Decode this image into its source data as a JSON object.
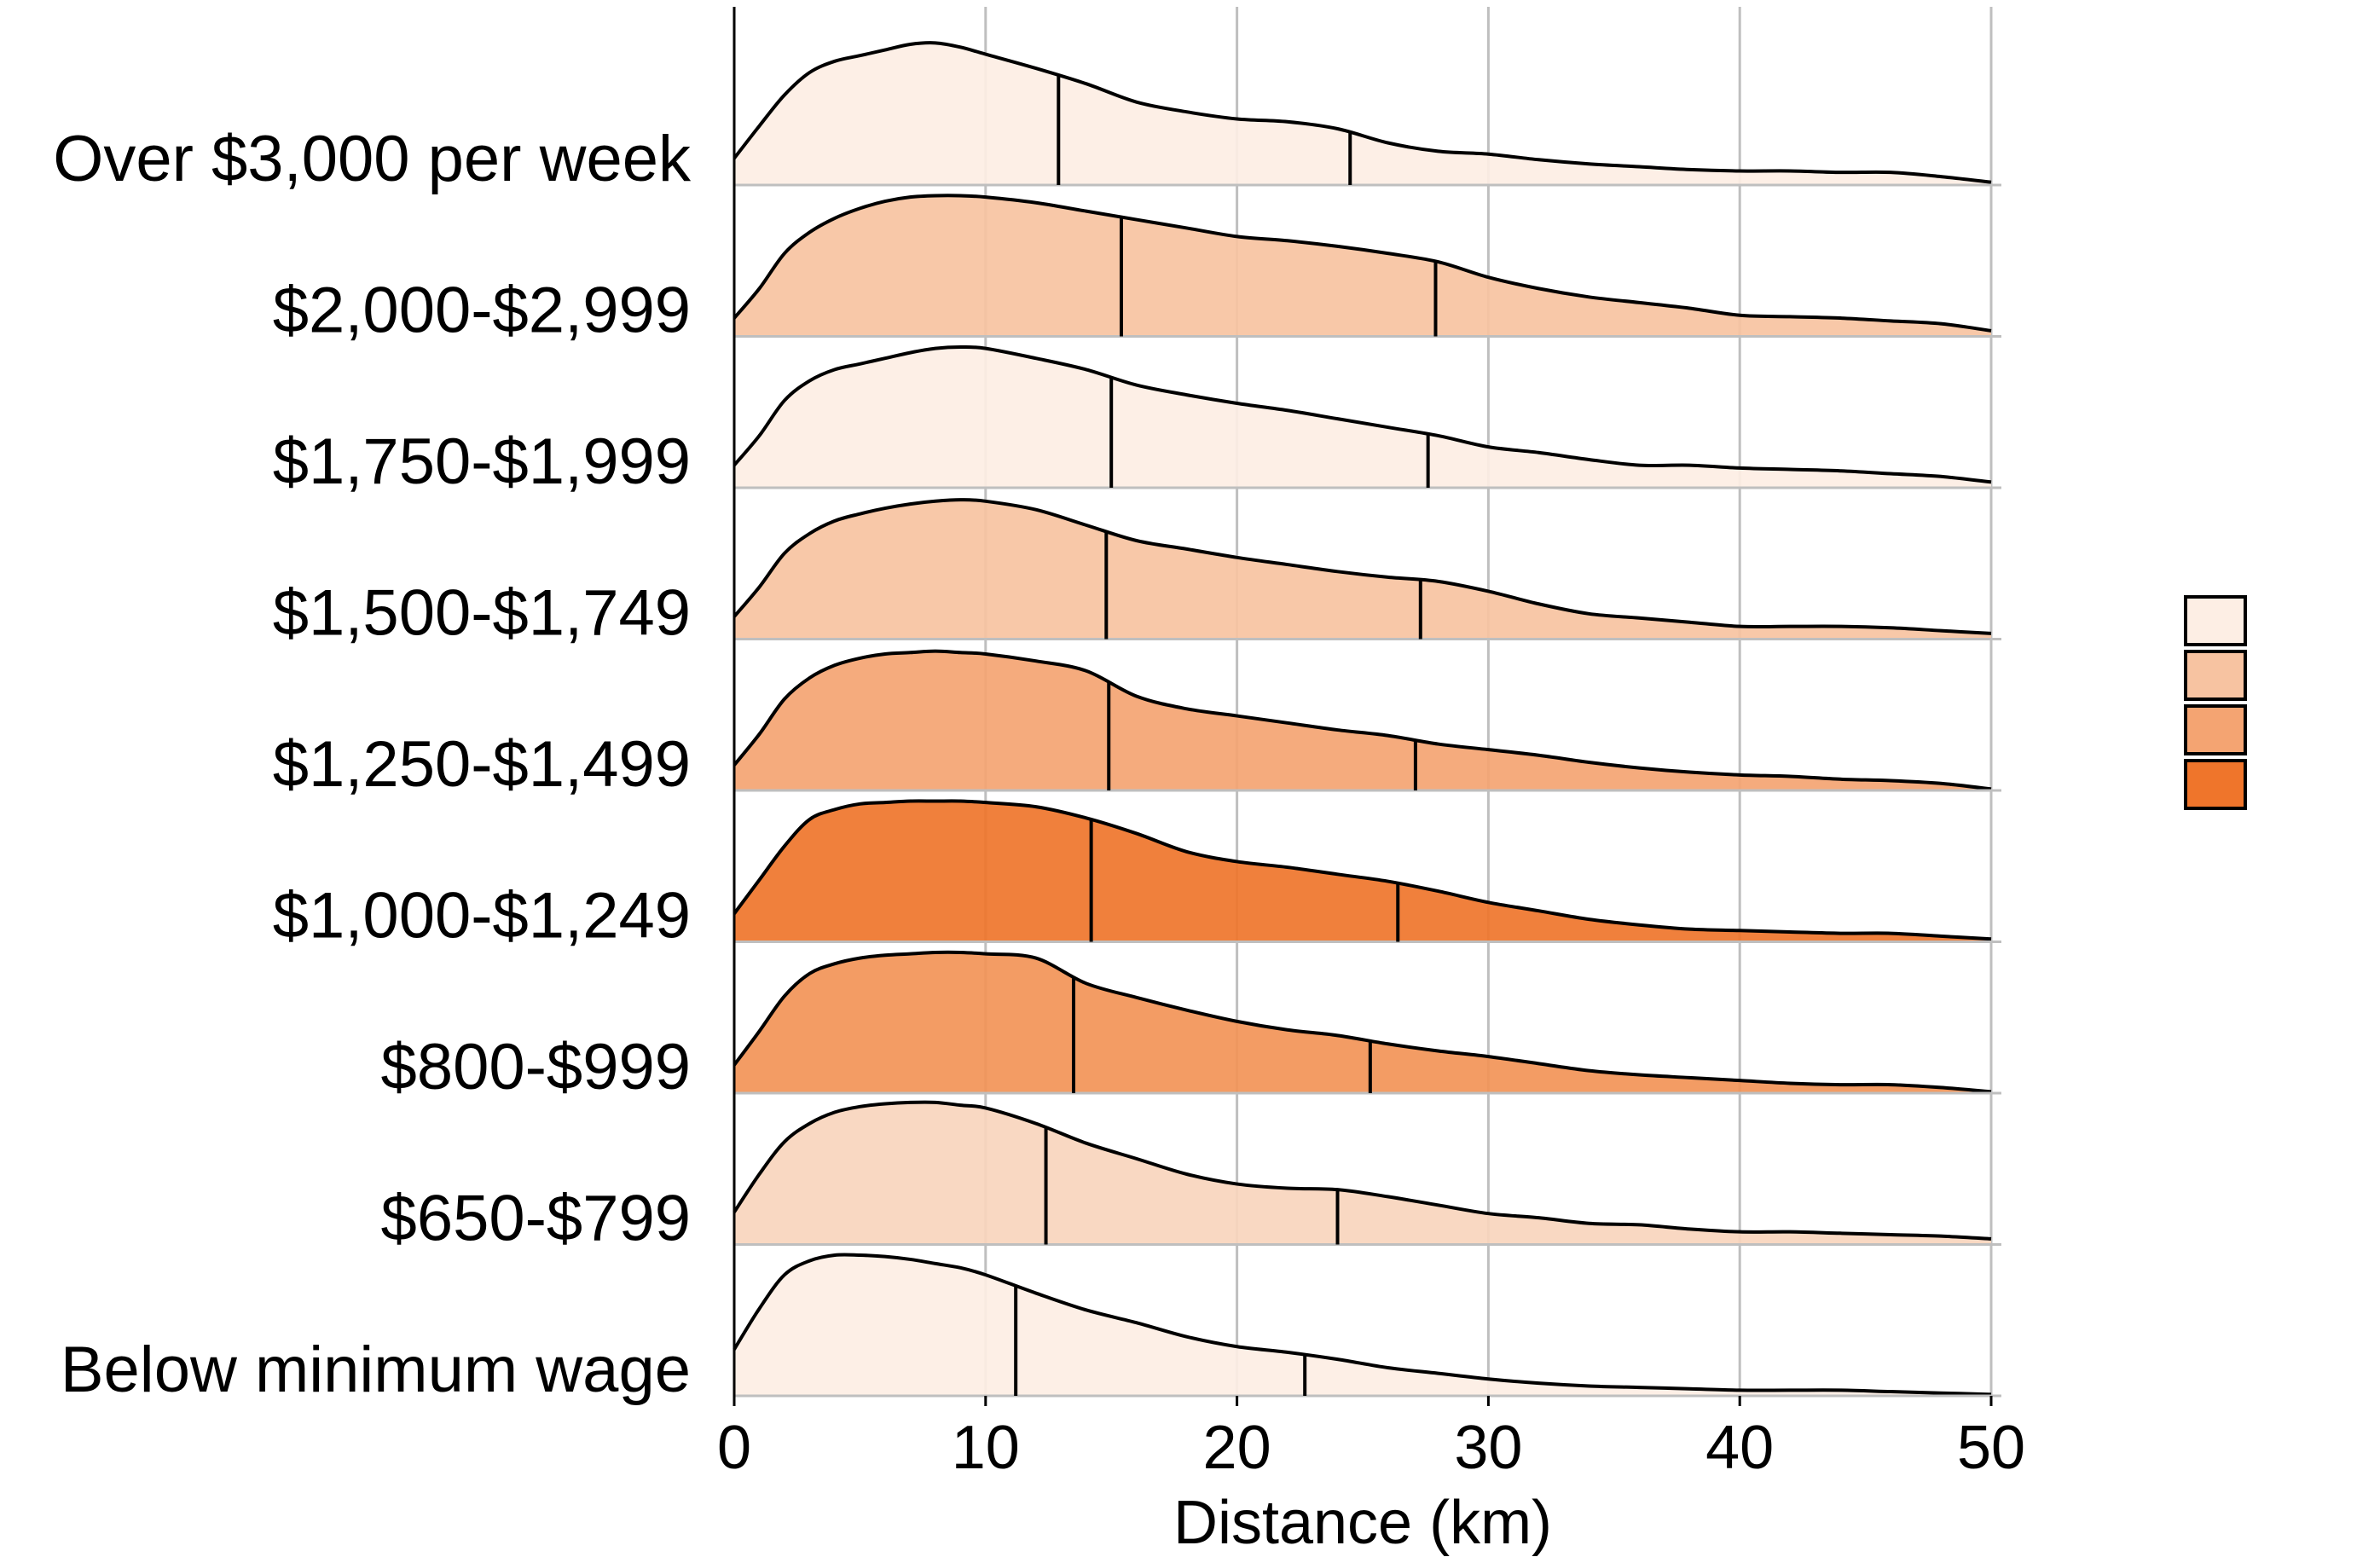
{
  "chart_data": {
    "type": "ridgeline",
    "title": "",
    "xlabel": "Distance (km)",
    "ylabel": "",
    "xlim": [
      0,
      50
    ],
    "xticks": [
      0,
      10,
      20,
      30,
      40,
      50
    ],
    "grid": "vertical",
    "legend": {
      "placement": "right",
      "colors": [
        "#fdeee4",
        "#f7c3a1",
        "#f4a472",
        "#ef752b"
      ]
    },
    "x": [
      0,
      1,
      2,
      3,
      4,
      5,
      6,
      7,
      8,
      9,
      10,
      12,
      14,
      16,
      18,
      20,
      22,
      24,
      26,
      28,
      30,
      32,
      34,
      36,
      38,
      40,
      42,
      44,
      46,
      48,
      50
    ],
    "series": [
      {
        "name": "Over $3,000 per week",
        "color": "#fdeee4",
        "quantiles": [
          12.9,
          24.5
        ],
        "density": [
          0.19,
          0.42,
          0.64,
          0.8,
          0.88,
          0.92,
          0.96,
          1.0,
          1.01,
          0.98,
          0.93,
          0.83,
          0.72,
          0.59,
          0.52,
          0.47,
          0.45,
          0.4,
          0.3,
          0.24,
          0.22,
          0.18,
          0.15,
          0.13,
          0.11,
          0.1,
          0.1,
          0.09,
          0.09,
          0.06,
          0.02
        ]
      },
      {
        "name": "$2,000-$2,999",
        "color": "#f7c3a1",
        "quantiles": [
          15.4,
          27.9
        ],
        "density": [
          0.13,
          0.34,
          0.59,
          0.74,
          0.84,
          0.91,
          0.96,
          0.99,
          1.0,
          1.0,
          0.99,
          0.95,
          0.89,
          0.83,
          0.77,
          0.71,
          0.68,
          0.64,
          0.59,
          0.53,
          0.42,
          0.34,
          0.28,
          0.24,
          0.2,
          0.15,
          0.14,
          0.13,
          0.11,
          0.09,
          0.04
        ]
      },
      {
        "name": "$1,750-$1,999",
        "color": "#fdeee4",
        "quantiles": [
          15.0,
          27.6
        ],
        "density": [
          0.16,
          0.37,
          0.62,
          0.76,
          0.84,
          0.88,
          0.92,
          0.96,
          0.99,
          1.0,
          0.99,
          0.92,
          0.84,
          0.73,
          0.66,
          0.6,
          0.55,
          0.49,
          0.43,
          0.37,
          0.29,
          0.25,
          0.2,
          0.16,
          0.16,
          0.14,
          0.13,
          0.12,
          0.1,
          0.08,
          0.04
        ]
      },
      {
        "name": "$1,500-$1,749",
        "color": "#f7c3a1",
        "quantiles": [
          14.8,
          27.3
        ],
        "density": [
          0.16,
          0.37,
          0.61,
          0.75,
          0.84,
          0.89,
          0.93,
          0.96,
          0.98,
          0.99,
          0.98,
          0.92,
          0.81,
          0.7,
          0.64,
          0.58,
          0.53,
          0.48,
          0.44,
          0.41,
          0.34,
          0.25,
          0.18,
          0.15,
          0.12,
          0.09,
          0.09,
          0.09,
          0.08,
          0.06,
          0.04
        ]
      },
      {
        "name": "$1,250-$1,499",
        "color": "#f4a472",
        "quantiles": [
          14.9,
          27.1
        ],
        "density": [
          0.18,
          0.4,
          0.65,
          0.8,
          0.89,
          0.94,
          0.97,
          0.98,
          0.99,
          0.98,
          0.97,
          0.92,
          0.85,
          0.67,
          0.58,
          0.53,
          0.48,
          0.43,
          0.39,
          0.33,
          0.29,
          0.25,
          0.2,
          0.16,
          0.13,
          0.11,
          0.1,
          0.08,
          0.07,
          0.05,
          0.01
        ]
      },
      {
        "name": "$1,000-$1,249",
        "color": "#ef752b",
        "quantiles": [
          14.2,
          26.4
        ],
        "density": [
          0.2,
          0.44,
          0.68,
          0.87,
          0.94,
          0.98,
          0.99,
          1.0,
          1.0,
          1.0,
          0.99,
          0.96,
          0.88,
          0.77,
          0.64,
          0.57,
          0.53,
          0.48,
          0.43,
          0.36,
          0.28,
          0.22,
          0.16,
          0.12,
          0.09,
          0.08,
          0.07,
          0.06,
          0.06,
          0.04,
          0.02
        ]
      },
      {
        "name": "$800-$999",
        "color": "#f29457",
        "quantiles": [
          13.5,
          25.3
        ],
        "density": [
          0.2,
          0.44,
          0.69,
          0.85,
          0.92,
          0.96,
          0.98,
          0.99,
          1.0,
          1.0,
          0.99,
          0.96,
          0.78,
          0.68,
          0.59,
          0.51,
          0.45,
          0.41,
          0.35,
          0.3,
          0.26,
          0.21,
          0.16,
          0.13,
          0.11,
          0.09,
          0.07,
          0.06,
          0.06,
          0.04,
          0.01
        ]
      },
      {
        "name": "$650-$799",
        "color": "#f9d5bd",
        "quantiles": [
          12.4,
          24.0
        ],
        "density": [
          0.23,
          0.5,
          0.73,
          0.86,
          0.94,
          0.98,
          1.0,
          1.01,
          1.01,
          0.99,
          0.97,
          0.86,
          0.72,
          0.61,
          0.5,
          0.43,
          0.4,
          0.39,
          0.34,
          0.28,
          0.22,
          0.19,
          0.15,
          0.14,
          0.11,
          0.09,
          0.09,
          0.08,
          0.07,
          0.06,
          0.04
        ]
      },
      {
        "name": "Below minimum wage",
        "color": "#fdeee4",
        "quantiles": [
          11.2,
          22.7
        ],
        "density": [
          0.33,
          0.62,
          0.86,
          0.96,
          1.0,
          1.0,
          0.99,
          0.97,
          0.94,
          0.91,
          0.86,
          0.73,
          0.61,
          0.52,
          0.42,
          0.35,
          0.31,
          0.26,
          0.2,
          0.16,
          0.12,
          0.09,
          0.07,
          0.06,
          0.05,
          0.04,
          0.04,
          0.04,
          0.03,
          0.02,
          0.01
        ]
      }
    ]
  }
}
